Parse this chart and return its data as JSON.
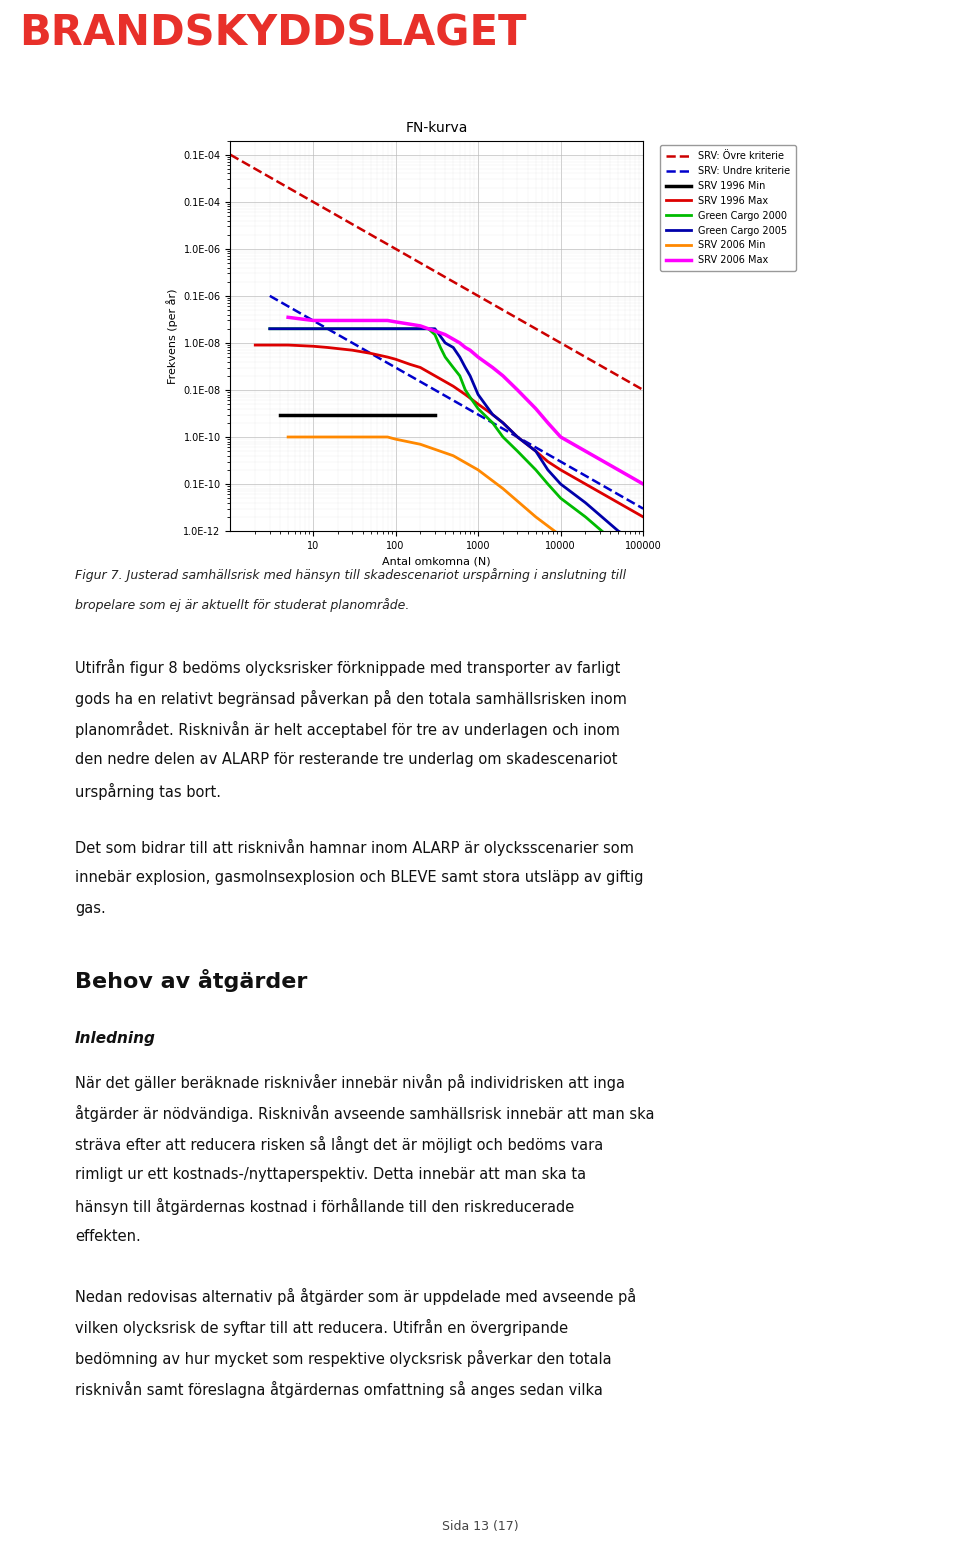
{
  "title": "FN-kurva",
  "xlabel": "Antal omkomna (N)",
  "ylabel": "Frekvens (per år)",
  "header_text": "BRANDSKYDDSLAGET",
  "figure_caption_1": "Figur 7. Justerad samhällsrisk med hänsyn till skadescenariot urspårning i anslutning till",
  "figure_caption_2": "bropelare som ej är aktuellt för studerat planområde.",
  "body_text_1": "Utifrån figur 8 bedöms olycksrisker förknippade med transporter av farligt gods ha en relativt begränsad påverkan på den totala samhällsrisken inom planområdet. Risknivån är helt acceptabel för tre av underlagen och inom den nedre delen av ALARP för resterande tre underlag om skadescenariot urspårning tas bort.",
  "body_text_2": "Det som bidrar till att risknivån hamnar inom ALARP är olycksscenarier som innebär explosion, gasmolnsexplosion och BLEVE samt stora utsläpp av giftig gas.",
  "section_heading": "Behov av åtgärder",
  "subsection_heading": "Inledning",
  "body_text_3": "När det gäller beräknade risknivåer innebär nivån på individrisken att inga åtgärder är nödvändiga. Risknivån avseende samhällsrisk innebär att man ska sträva efter att reducera risken så långt det är möjligt och bedöms vara rimligt ur ett kostnads-/nyttaperspektiv. Detta innebär att man ska ta hänsyn till åtgärdernas kostnad i förhållande till den riskreducerade effekten.",
  "body_text_4": "Nedan redovisas alternativ på åtgärder som är uppdelade med avseende på vilken olycksrisk de syftar till att reducera. Utifrån en övergripande bedömning av hur mycket som respektive olycksrisk påverkar den totala risknivån samt föreslagna åtgärdernas omfattning så anges sedan vilka",
  "footer_text": "Sida 13 (17)",
  "legend_entries": [
    "SRV: Övre kriterie",
    "SRV: Undre kriterie",
    "SRV 1996 Min",
    "SRV 1996 Max",
    "Green Cargo 2000",
    "Green Cargo 2005",
    "SRV 2006 Min",
    "SRV 2006 Max"
  ],
  "background_color": "#FFFFFF",
  "plot_bg_color": "#FFFFFF",
  "grid_color": "#BBBBBB"
}
